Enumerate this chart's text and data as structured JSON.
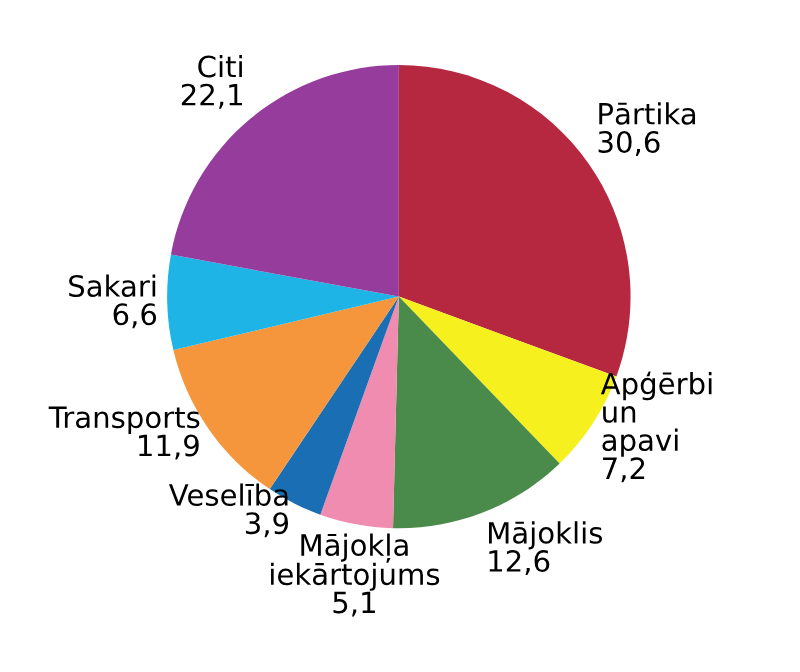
{
  "chart_data": {
    "type": "pie",
    "categories": [
      "Pārtika",
      "Apģērbi un apavi",
      "Mājoklis",
      "Mājokļa iekārtojums",
      "Veselība",
      "Transports",
      "Sakari",
      "Citi"
    ],
    "values": [
      30.6,
      7.2,
      12.6,
      5.1,
      3.9,
      11.9,
      6.6,
      22.1
    ],
    "value_labels": [
      "30,6",
      "7,2",
      "12,6",
      "5,1",
      "3,9",
      "11,9",
      "6,6",
      "22,1"
    ],
    "colors": [
      "#b5283f",
      "#f5f01e",
      "#4a8a4a",
      "#f08cb0",
      "#1a6eb4",
      "#f5963c",
      "#1eb4e6",
      "#963c9c"
    ]
  }
}
